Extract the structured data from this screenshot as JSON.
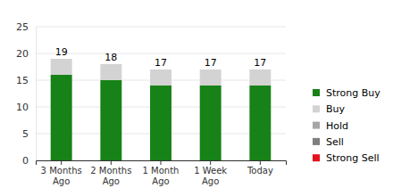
{
  "chart_data": {
    "type": "bar",
    "stacked": true,
    "categories": [
      "3 Months Ago",
      "2 Months Ago",
      "1 Month Ago",
      "1 Week Ago",
      "Today"
    ],
    "series": [
      {
        "name": "Strong Buy",
        "color": "#178217",
        "values": [
          16,
          15,
          14,
          14,
          14
        ]
      },
      {
        "name": "Buy",
        "color": "#d3d3d3",
        "values": [
          3,
          3,
          3,
          3,
          3
        ]
      },
      {
        "name": "Hold",
        "color": "#a6a6a6",
        "values": [
          0,
          0,
          0,
          0,
          0
        ]
      },
      {
        "name": "Sell",
        "color": "#7f7f7f",
        "values": [
          0,
          0,
          0,
          0,
          0
        ]
      },
      {
        "name": "Strong Sell",
        "color": "#e5131d",
        "values": [
          0,
          0,
          0,
          0,
          0
        ]
      }
    ],
    "totals": [
      19,
      18,
      17,
      17,
      17
    ],
    "ylim": [
      0,
      25
    ],
    "yticks": [
      0,
      5,
      10,
      15,
      20,
      25
    ],
    "grid": true,
    "legend": "right"
  }
}
